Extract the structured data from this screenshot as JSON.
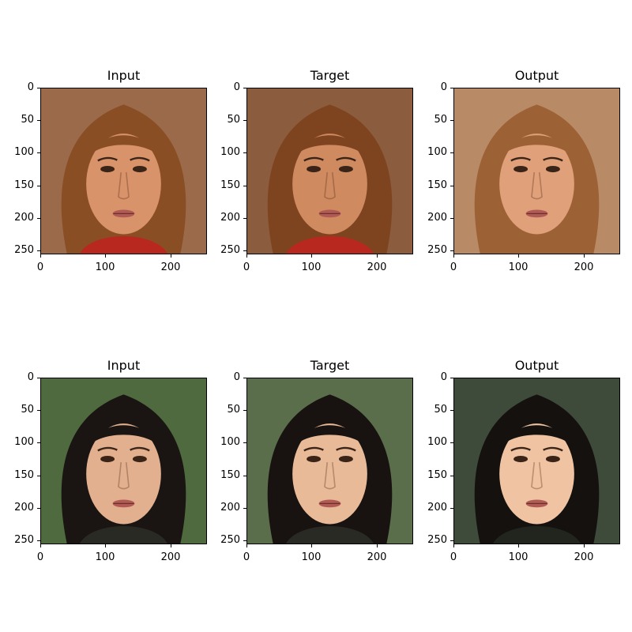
{
  "rows": [
    {
      "panels": [
        {
          "title": "Input",
          "image": "face-1-input",
          "colors": {
            "bg": "#9a6a4a",
            "hair": "#8a4e24",
            "skin": "#d9936a",
            "shirt": "#b8281e"
          }
        },
        {
          "title": "Target",
          "image": "face-1-target",
          "colors": {
            "bg": "#8c5c3e",
            "hair": "#7e4420",
            "skin": "#d08a60",
            "shirt": "#b8281e"
          }
        },
        {
          "title": "Output",
          "image": "face-1-output",
          "colors": {
            "bg": "#b98a66",
            "hair": "#9c6236",
            "skin": "#e0a07a",
            "shirt": "#9c6236"
          }
        }
      ]
    },
    {
      "panels": [
        {
          "title": "Input",
          "image": "face-2-input",
          "colors": {
            "bg": "#4e6a3e",
            "hair": "#1a1412",
            "skin": "#e2b08e",
            "shirt": "#2a2a24"
          }
        },
        {
          "title": "Target",
          "image": "face-2-target",
          "colors": {
            "bg": "#5a6e4c",
            "hair": "#181210",
            "skin": "#e8ba98",
            "shirt": "#2a2a24"
          }
        },
        {
          "title": "Output",
          "image": "face-2-output",
          "colors": {
            "bg": "#3e4a3a",
            "hair": "#14110f",
            "skin": "#f0c4a2",
            "shirt": "#22241e"
          }
        }
      ]
    }
  ],
  "axes": {
    "y_ticks": [
      "0",
      "50",
      "100",
      "150",
      "200",
      "250"
    ],
    "x_ticks": [
      "0",
      "100",
      "200"
    ]
  }
}
